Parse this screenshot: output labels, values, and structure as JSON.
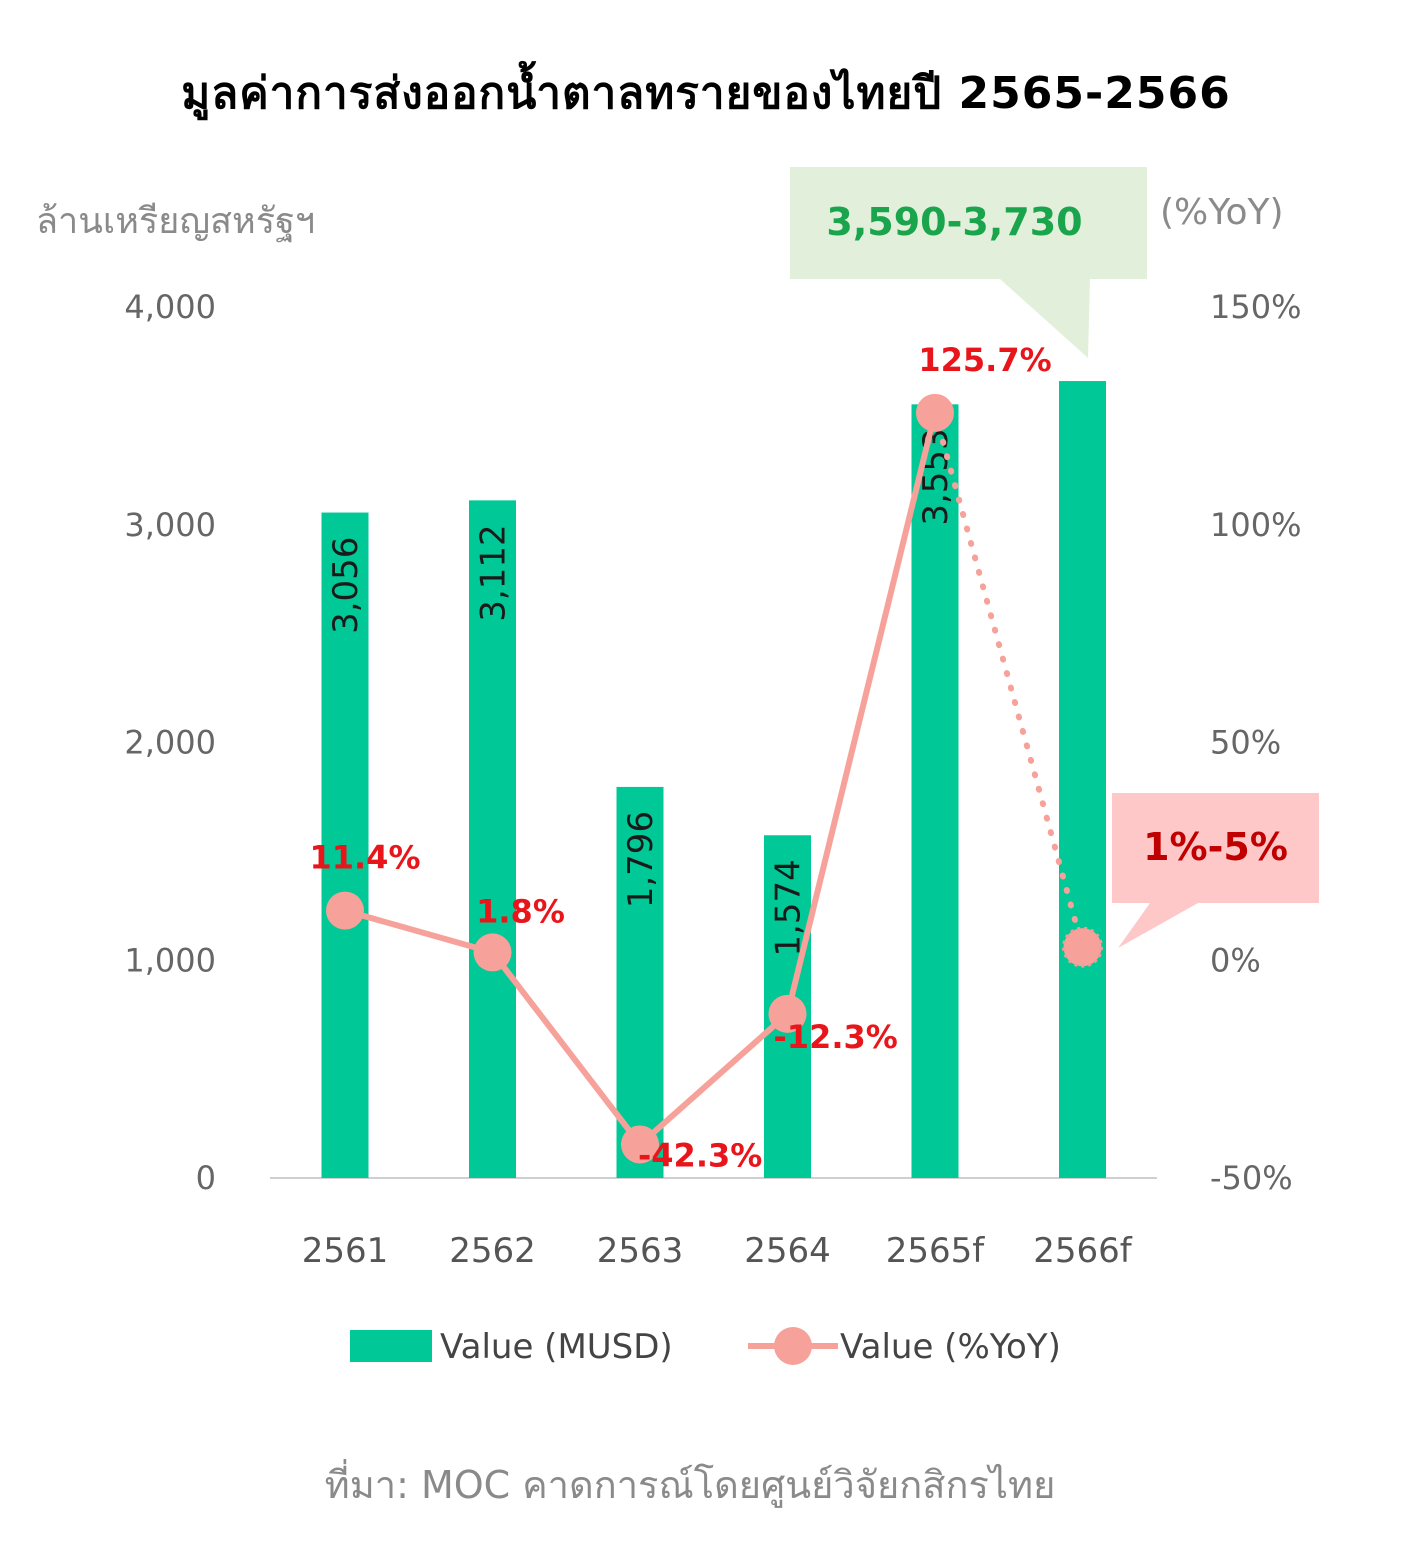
{
  "title": "มูลค่าการส่งออกน้ำตาลทรายของไทยปี 2565-2566",
  "source": "ที่มา: MOC คาดการณ์โดยศูนย์วิจัยกสิกรไทย",
  "colors": {
    "bar": "#00c896",
    "line": "#f7a19b",
    "marker": "#f7a19b",
    "pct_label": "#e8161b",
    "callout_green_bg": "#e2efda",
    "callout_green_text": "#1aa44c",
    "callout_red_bg": "#ffc8c8",
    "callout_red_text": "#c00000"
  },
  "chart_data": {
    "type": "bar",
    "categories": [
      "2561",
      "2562",
      "2563",
      "2564",
      "2565f",
      "2566f"
    ],
    "series": [
      {
        "name": "Value (MUSD)",
        "type": "bar",
        "axis": "left",
        "values": [
          3056,
          3112,
          1796,
          1574,
          3553,
          3660
        ],
        "data_labels": [
          "3,056",
          "3,112",
          "1,796",
          "1,574",
          "3,553",
          ""
        ]
      },
      {
        "name": "Value (%YoY)",
        "type": "line",
        "axis": "right",
        "values": [
          11.4,
          1.8,
          -42.3,
          -12.3,
          125.7,
          3
        ],
        "data_labels": [
          "11.4%",
          "1.8%",
          "-42.3%",
          "-12.3%",
          "125.7%",
          ""
        ],
        "dashed_last_segment": true
      }
    ],
    "y_left": {
      "label": "ล้านเหรียญสหรัฐฯ",
      "ylim": [
        0,
        4000
      ],
      "ticks": [
        0,
        1000,
        2000,
        3000,
        4000
      ],
      "tick_labels": [
        "0",
        "1,000",
        "2,000",
        "3,000",
        "4,000"
      ]
    },
    "y_right": {
      "label": "(%YoY)",
      "ylim": [
        -50,
        150
      ],
      "ticks": [
        -50,
        0,
        50,
        100,
        150
      ],
      "tick_labels": [
        "-50%",
        "0%",
        "50%",
        "100%",
        "150%"
      ]
    },
    "annotations": [
      {
        "category": "2566f",
        "series": "Value (MUSD)",
        "text": "3,590-3,730"
      },
      {
        "category": "2566f",
        "series": "Value (%YoY)",
        "text": "1%-5%"
      }
    ],
    "legend_position": "bottom",
    "grid": false
  }
}
